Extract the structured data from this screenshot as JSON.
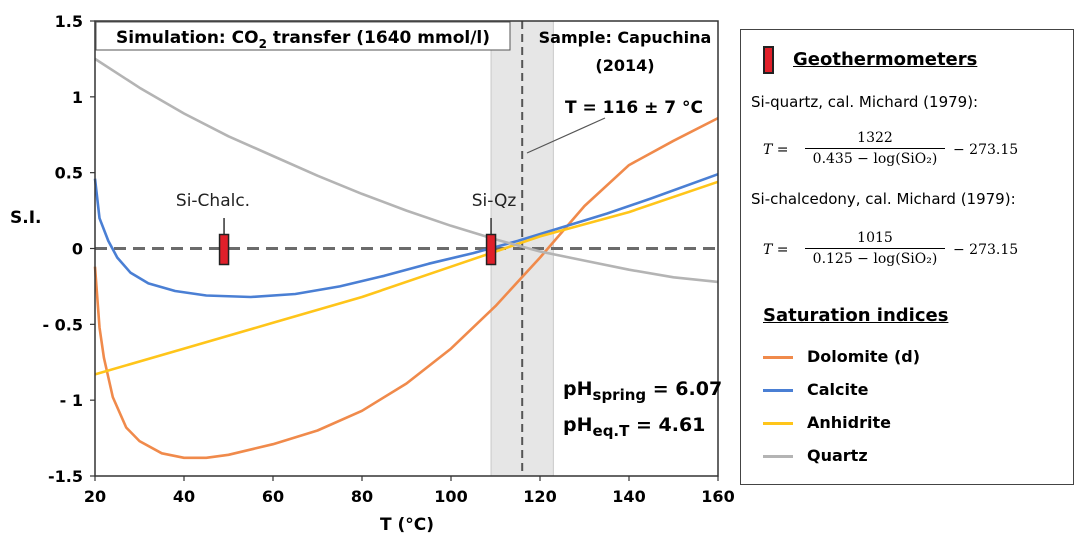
{
  "chart_data": {
    "type": "line",
    "xlabel": "T (°C)",
    "ylabel": "S.I.",
    "xlim": [
      20,
      160
    ],
    "ylim": [
      -1.5,
      1.5
    ],
    "xticks": [
      20,
      40,
      60,
      80,
      100,
      120,
      140,
      160
    ],
    "yticks": [
      1.5,
      1,
      0.5,
      0,
      -0.5,
      -1,
      -1.5
    ],
    "ytick_labels": [
      "1.5",
      "1",
      "0.5",
      "0",
      "- 0.5",
      "- 1",
      "-1.5"
    ],
    "grid": false,
    "sim_label": {
      "prefix": "Simulation: CO",
      "sub": "2",
      "suffix": " transfer (1640 mmol/l)"
    },
    "sample_label": [
      "Sample: Capuchina",
      "(2014)"
    ],
    "temp_annotation": "T = 116 ± 7 °C",
    "estimated_T": 116,
    "uncertainty_band": [
      109,
      123
    ],
    "ph_spring": {
      "prefix": "pH",
      "sub": "spring",
      "value": " = 6.07"
    },
    "ph_eq": {
      "prefix": "pH",
      "sub": "eq.T",
      "value": " = 4.61"
    },
    "geothermometer_markers": [
      {
        "label": "Si-Chalc.",
        "x": 49,
        "y": 0
      },
      {
        "label": "Si-Qz",
        "x": 109,
        "y": 0
      }
    ],
    "series": [
      {
        "name": "Dolomite (d)",
        "color": "#f08a4b",
        "x": [
          20,
          21,
          22,
          24,
          27,
          30,
          35,
          40,
          45,
          50,
          60,
          70,
          80,
          90,
          100,
          110,
          120,
          130,
          140,
          150,
          160
        ],
        "y": [
          -0.12,
          -0.52,
          -0.72,
          -0.98,
          -1.18,
          -1.27,
          -1.35,
          -1.38,
          -1.38,
          -1.36,
          -1.29,
          -1.2,
          -1.07,
          -0.89,
          -0.66,
          -0.38,
          -0.06,
          0.28,
          0.55,
          0.71,
          0.86
        ]
      },
      {
        "name": "Calcite",
        "color": "#4a7fd4",
        "x": [
          20,
          21,
          23,
          25,
          28,
          32,
          38,
          45,
          55,
          65,
          75,
          85,
          95,
          105,
          115,
          125,
          135,
          145,
          160
        ],
        "y": [
          0.46,
          0.2,
          0.05,
          -0.06,
          -0.16,
          -0.23,
          -0.28,
          -0.31,
          -0.32,
          -0.3,
          -0.25,
          -0.18,
          -0.1,
          -0.03,
          0.05,
          0.14,
          0.23,
          0.33,
          0.49
        ]
      },
      {
        "name": "Anhidrite",
        "color": "#ffc51a",
        "x": [
          20,
          40,
          60,
          80,
          100,
          120,
          140,
          160
        ],
        "y": [
          -0.83,
          -0.66,
          -0.49,
          -0.32,
          -0.12,
          0.08,
          0.24,
          0.44
        ]
      },
      {
        "name": "Quartz",
        "color": "#b4b4b4",
        "x": [
          20,
          30,
          40,
          50,
          60,
          70,
          80,
          90,
          100,
          110,
          120,
          130,
          140,
          150,
          160
        ],
        "y": [
          1.25,
          1.06,
          0.89,
          0.74,
          0.61,
          0.48,
          0.36,
          0.25,
          0.15,
          0.06,
          -0.02,
          -0.08,
          -0.14,
          -0.19,
          -0.22
        ]
      }
    ]
  },
  "legend": {
    "geo_title": "Geothermometers",
    "quartz_cal": "Si-quartz, cal. Michard (1979):",
    "quartz_formula": {
      "lhs": "T =",
      "num": "1322",
      "den": "0.435 − log(SiO₂)",
      "rhs": "− 273.15"
    },
    "chalc_cal": "Si-chalcedony, cal. Michard (1979):",
    "chalc_formula": {
      "lhs": "T =",
      "num": "1015",
      "den": "0.125 − log(SiO₂)",
      "rhs": "− 273.15"
    },
    "sat_title": "Saturation indices",
    "items": [
      {
        "label": "Dolomite (d)",
        "color": "#f08a4b"
      },
      {
        "label": "Calcite",
        "color": "#4a7fd4"
      },
      {
        "label": "Anhidrite",
        "color": "#ffc51a"
      },
      {
        "label": "Quartz",
        "color": "#b4b4b4"
      }
    ]
  }
}
